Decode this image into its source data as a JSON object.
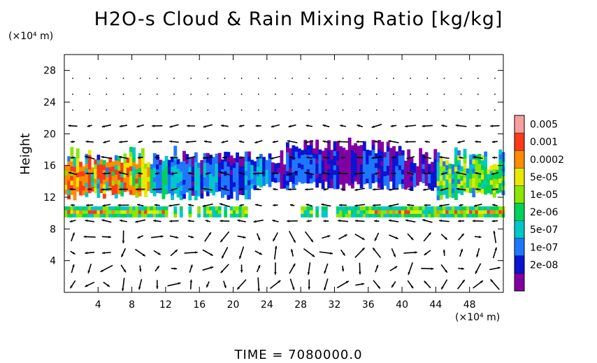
{
  "chart_data": {
    "type": "heatmap",
    "title": "H2O-s Cloud & Rain Mixing Ratio [kg/kg]",
    "ylabel": "Height",
    "y_unit": "(×10⁴ m)",
    "x_unit": "(×10⁴ m)",
    "xlim": [
      0,
      52
    ],
    "ylim": [
      0,
      30
    ],
    "x_ticks": [
      4,
      8,
      12,
      16,
      20,
      24,
      28,
      32,
      36,
      40,
      44,
      48
    ],
    "y_ticks": [
      4,
      8,
      12,
      16,
      20,
      24,
      28
    ],
    "footer": "TIME = 7080000.0",
    "colorbar": {
      "labels": [
        "0.005",
        "0.001",
        "0.0002",
        "5e-05",
        "1e-05",
        "2e-06",
        "5e-07",
        "1e-07",
        "2e-08"
      ],
      "colors": [
        "#f7a0a0",
        "#ff3a1a",
        "#ff8c00",
        "#e8e800",
        "#8ce600",
        "#00d25a",
        "#00c8c8",
        "#1e78ff",
        "#0a14d2",
        "#8200a0"
      ]
    },
    "cloud_layers": [
      {
        "x": [
          0,
          52
        ],
        "y_bottom": 12,
        "y_top": 19,
        "note": "upper cloud deck, denser (green/red) at x 0–10 and 44–52, blue elsewhere"
      },
      {
        "x": [
          0,
          22
        ],
        "y_bottom": 9.5,
        "y_top": 10.8
      },
      {
        "x": [
          28,
          52
        ],
        "y_bottom": 9.5,
        "y_top": 10.8
      }
    ],
    "grid": false,
    "legend": "right"
  }
}
